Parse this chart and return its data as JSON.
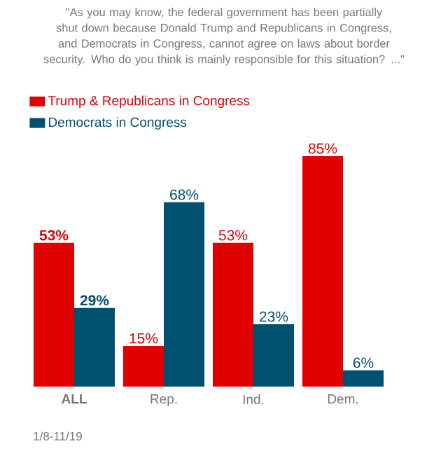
{
  "chart_data": {
    "type": "bar",
    "title": "\"As you may know, the federal government has been partially shut down because Donald Trump and Republicans in Congress, and Democrats in Congress, cannot agree on laws about border security. Who do you think is mainly responsible for this situation? ...\"",
    "categories": [
      "ALL",
      "Rep.",
      "Ind.",
      "Dem."
    ],
    "series": [
      {
        "name": "Trump & Republicans in Congress",
        "color": "#e00000",
        "values": [
          53,
          15,
          53,
          85
        ],
        "value_labels": [
          "53%",
          "15%",
          "53%",
          "85%"
        ]
      },
      {
        "name": "Democrats in Congress",
        "color": "#00506f",
        "values": [
          29,
          68,
          23,
          6
        ],
        "value_labels": [
          "29%",
          "68%",
          "23%",
          "6%"
        ]
      }
    ],
    "legend": "top left",
    "annotations": [
      "1/8-11/19"
    ]
  }
}
